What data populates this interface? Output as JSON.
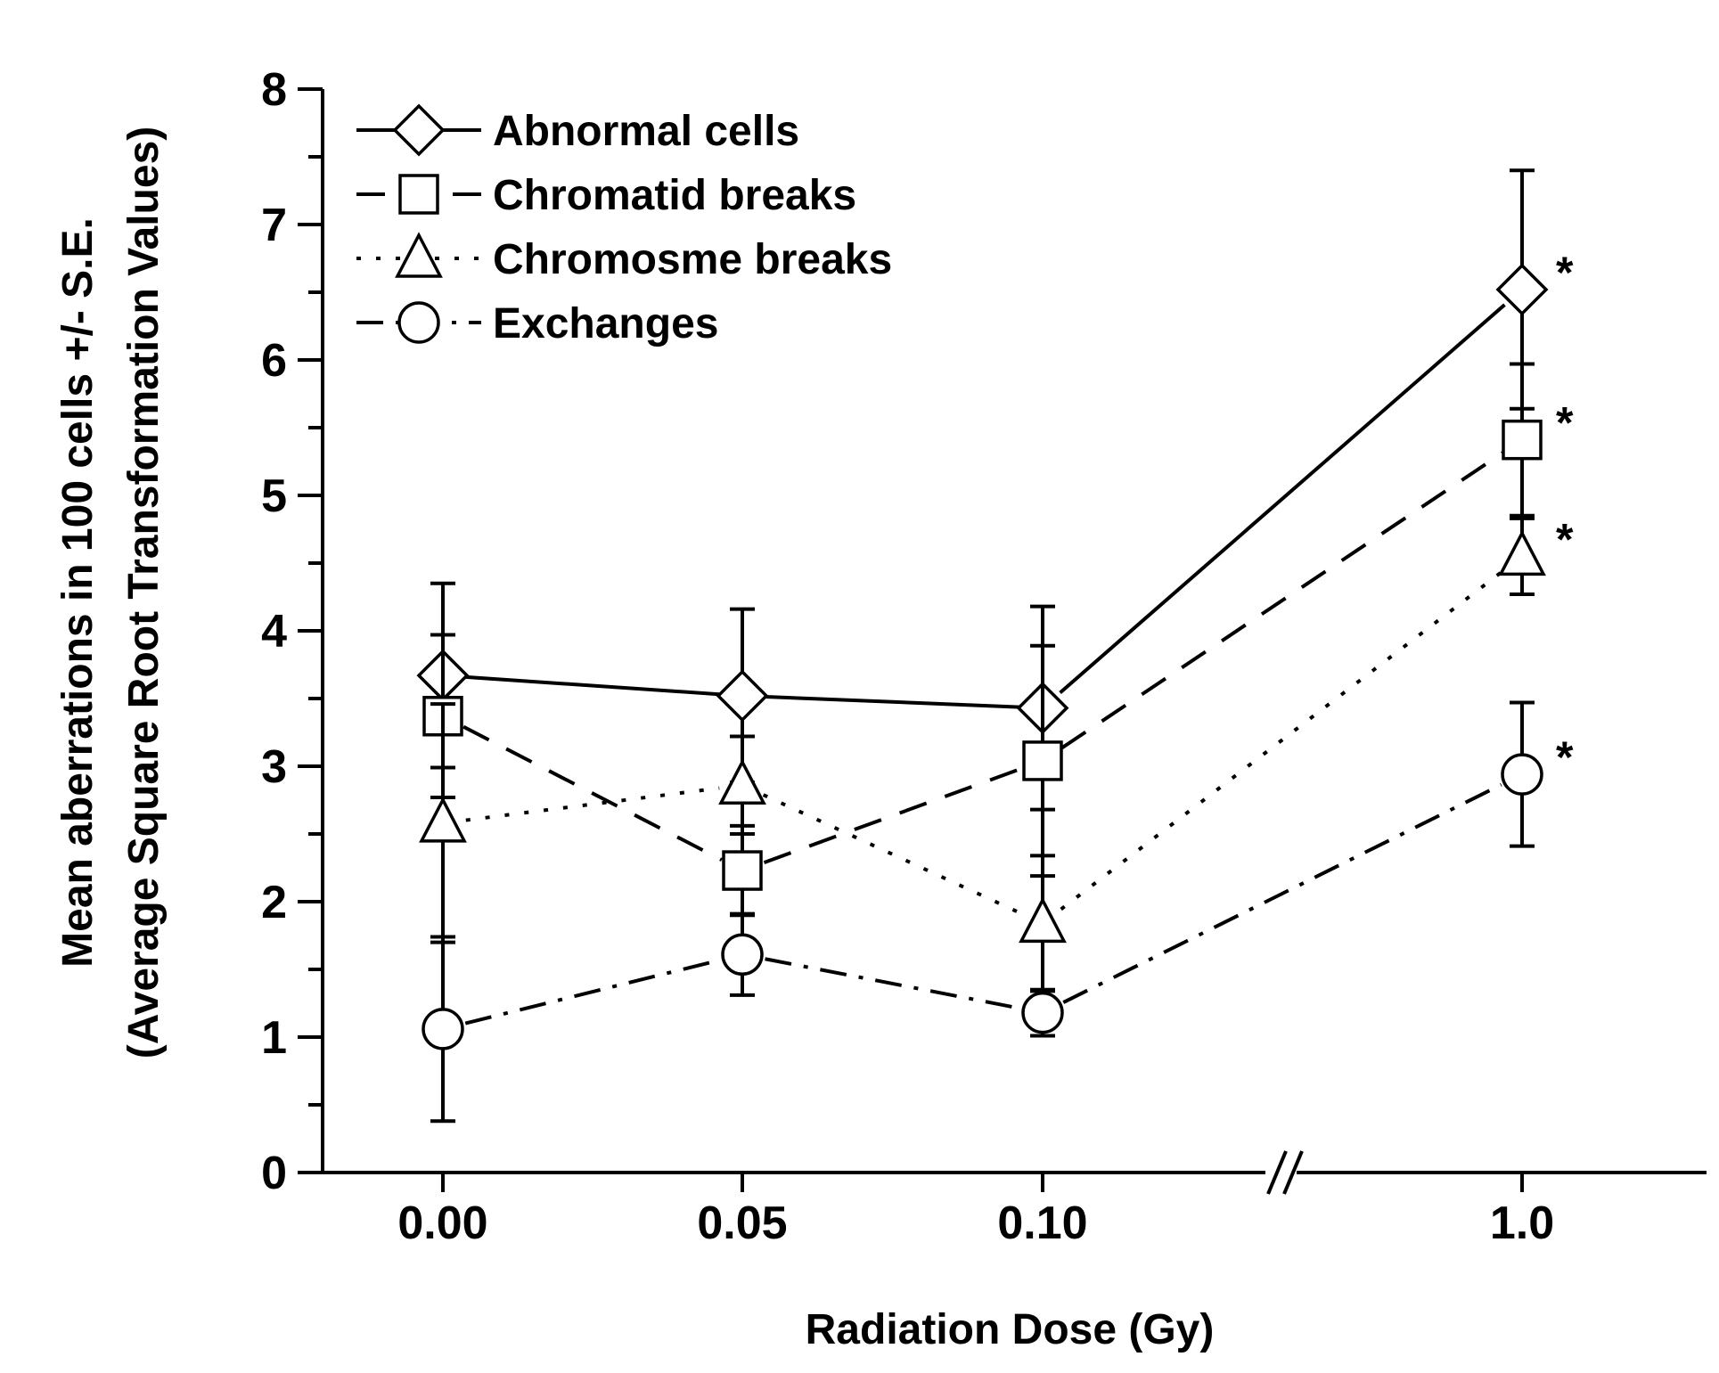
{
  "chart_data": {
    "type": "line",
    "title": "",
    "xlabel": "Radiation Dose (Gy)",
    "ylabel_line1": "Mean aberrations in 100 cells +/- S.E.",
    "ylabel_line2": "(Average Square Root Transformation Values)",
    "categories": [
      "0.00",
      "0.05",
      "0.10",
      "1.0"
    ],
    "axis_break": "between 0.10 and 1.0",
    "ylim": [
      0,
      8
    ],
    "yticks": [
      "0",
      "1",
      "2",
      "3",
      "4",
      "5",
      "6",
      "7",
      "8"
    ],
    "legend_position": "top-left",
    "significance_marker": "*",
    "series": [
      {
        "name": "Abnormal cells",
        "marker": "diamond",
        "line_style": "solid",
        "values": [
          3.67,
          3.52,
          3.43,
          6.52
        ],
        "errors": [
          0.68,
          0.64,
          0.75,
          0.88
        ],
        "significant": [
          false,
          false,
          false,
          true
        ]
      },
      {
        "name": "Chromatid breaks",
        "marker": "square",
        "line_style": "dashed",
        "values": [
          3.37,
          2.23,
          3.04,
          5.41
        ],
        "errors": [
          0.6,
          0.33,
          0.85,
          0.56
        ],
        "significant": [
          false,
          false,
          false,
          true
        ]
      },
      {
        "name": "Chromosme breaks",
        "marker": "triangle",
        "line_style": "dotted",
        "values": [
          2.58,
          2.86,
          1.84,
          4.55
        ],
        "errors": [
          0.88,
          0.36,
          0.5,
          0.28
        ],
        "significant": [
          false,
          false,
          false,
          true
        ]
      },
      {
        "name": "Exchanges",
        "marker": "circle",
        "line_style": "dash-dot",
        "values": [
          1.06,
          1.61,
          1.18,
          2.94
        ],
        "errors": [
          0.68,
          0.3,
          0.17,
          0.53
        ],
        "significant": [
          false,
          false,
          false,
          true
        ]
      }
    ]
  }
}
